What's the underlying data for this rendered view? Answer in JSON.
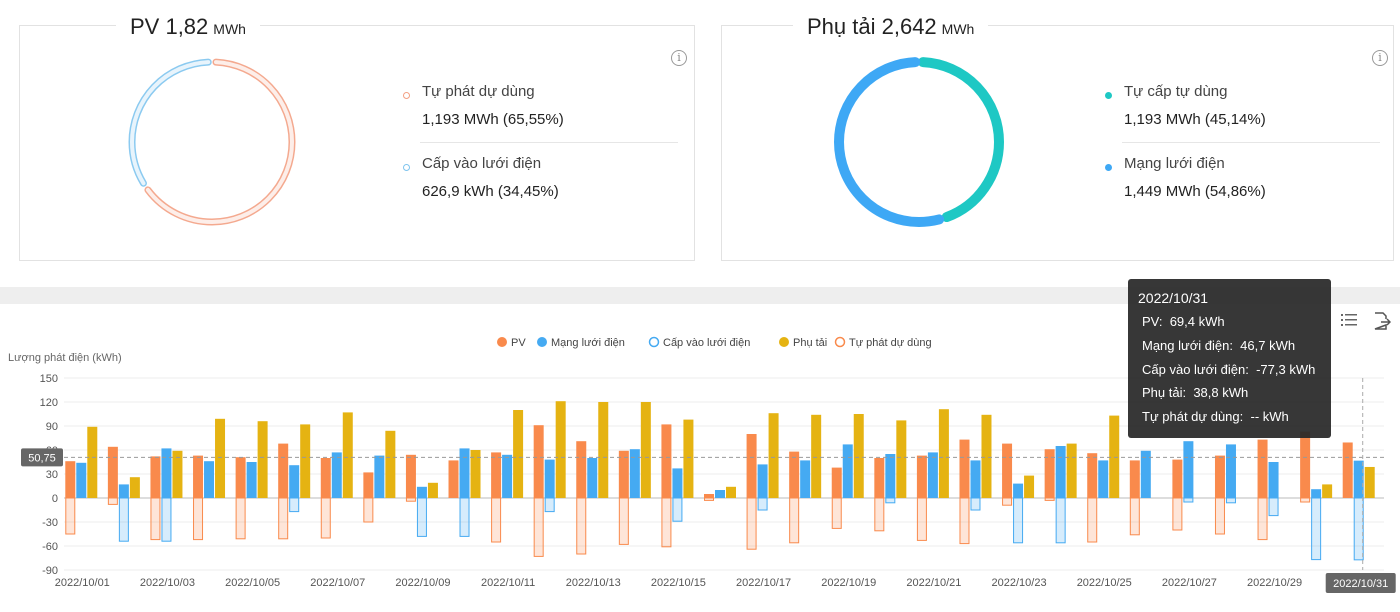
{
  "pv_card": {
    "title": "PV 1,82",
    "unit": "MWh",
    "items": [
      {
        "label": "Tự phát dự dùng",
        "value": "1,193 MWh (65,55%)",
        "percent": 65.55,
        "color": "#f3a083"
      },
      {
        "label": "Cấp vào lưới điện",
        "value": "626,9 kWh (34,45%)",
        "percent": 34.45,
        "color": "#7ec4ee"
      }
    ]
  },
  "load_card": {
    "title": "Phụ tải 2,642",
    "unit": "MWh",
    "items": [
      {
        "label": "Tự cấp tự dùng",
        "value": "1,193 MWh (45,14%)",
        "percent": 45.14,
        "color": "#1ec8c4"
      },
      {
        "label": "Mạng lưới điện",
        "value": "1,449 MWh (54,86%)",
        "percent": 54.86,
        "color": "#3ea8f5"
      }
    ]
  },
  "info_glyph": "i",
  "tooltip": {
    "date": "2022/10/31",
    "rows": [
      {
        "label": "PV",
        "value": "69,4 kWh"
      },
      {
        "label": "Mạng lưới điện",
        "value": "46,7 kWh"
      },
      {
        "label": "Cấp vào lưới điện",
        "value": "-77,3 kWh"
      },
      {
        "label": "Phụ tải",
        "value": "38,8 kWh"
      },
      {
        "label": "Tự phát dự dùng",
        "value": "-- kWh"
      }
    ]
  },
  "chart_data": {
    "type": "bar",
    "ylabel": "Lượng phát điện (kWh)",
    "ylim": [
      -90,
      150
    ],
    "yticks": [
      150,
      120,
      90,
      60,
      30,
      0,
      -30,
      -60,
      -90
    ],
    "grid": true,
    "legend_position": "top-center",
    "average_line": {
      "value": 50.75,
      "label": "50,75"
    },
    "highlighted_category": "2022/10/31",
    "categories": [
      "2022/10/01",
      "2022/10/02",
      "2022/10/03",
      "2022/10/04",
      "2022/10/05",
      "2022/10/06",
      "2022/10/07",
      "2022/10/08",
      "2022/10/09",
      "2022/10/10",
      "2022/10/11",
      "2022/10/12",
      "2022/10/13",
      "2022/10/14",
      "2022/10/15",
      "2022/10/16",
      "2022/10/17",
      "2022/10/18",
      "2022/10/19",
      "2022/10/20",
      "2022/10/21",
      "2022/10/22",
      "2022/10/23",
      "2022/10/24",
      "2022/10/25",
      "2022/10/26",
      "2022/10/27",
      "2022/10/28",
      "2022/10/29",
      "2022/10/30",
      "2022/10/31"
    ],
    "xtick_labels": [
      "2022/10/01",
      "2022/10/03",
      "2022/10/05",
      "2022/10/07",
      "2022/10/09",
      "2022/10/11",
      "2022/10/13",
      "2022/10/15",
      "2022/10/17",
      "2022/10/19",
      "2022/10/21",
      "2022/10/23",
      "2022/10/25",
      "2022/10/27",
      "2022/10/29",
      "2022/10/31"
    ],
    "series": [
      {
        "name": "PV",
        "color": "#f98a4c",
        "style": "solid",
        "values": [
          46,
          64,
          52,
          53,
          51,
          68,
          50,
          32,
          54,
          47,
          57,
          91,
          71,
          59,
          92,
          5,
          80,
          58,
          38,
          50,
          53,
          73,
          68,
          61,
          56,
          47,
          48,
          53,
          73,
          83,
          69.4
        ]
      },
      {
        "name": "Mạng lưới điện",
        "color": "#45aaf2",
        "style": "solid",
        "values": [
          44,
          17,
          62,
          46,
          45,
          41,
          57,
          53,
          14,
          62,
          54,
          48,
          50,
          61,
          37,
          10,
          42,
          47,
          67,
          55,
          57,
          47,
          18,
          65,
          47,
          59,
          71,
          67,
          45,
          11,
          46.7
        ]
      },
      {
        "name": "Cấp vào lưới điện",
        "color": "#45aaf2",
        "style": "outline",
        "values": [
          0,
          -54,
          -54,
          0,
          0,
          -17,
          0,
          0,
          -48,
          -48,
          0,
          -17,
          0,
          0,
          -29,
          0,
          -15,
          0,
          0,
          -6,
          0,
          -15,
          -56,
          -56,
          0,
          0,
          -5,
          -6,
          -22,
          -77,
          -77.3
        ]
      },
      {
        "name": "Phụ tải",
        "color": "#e5b312",
        "style": "solid",
        "values": [
          89,
          26,
          59,
          99,
          96,
          92,
          107,
          84,
          19,
          60,
          110,
          121,
          120,
          120,
          98,
          14,
          106,
          104,
          105,
          97,
          111,
          104,
          28,
          68,
          103,
          0,
          0,
          0,
          0,
          17,
          38.8
        ]
      },
      {
        "name": "Tự phát dự dùng",
        "color": "#f98a4c",
        "style": "outline",
        "values": [
          -45,
          -8,
          -52,
          -52,
          -51,
          -51,
          -50,
          -30,
          -4,
          0,
          -55,
          -73,
          -70,
          -58,
          -61,
          -3,
          -64,
          -56,
          -38,
          -41,
          -53,
          -57,
          -9,
          -3,
          -55,
          -46,
          -40,
          -45,
          -52,
          -5,
          0
        ]
      }
    ]
  }
}
